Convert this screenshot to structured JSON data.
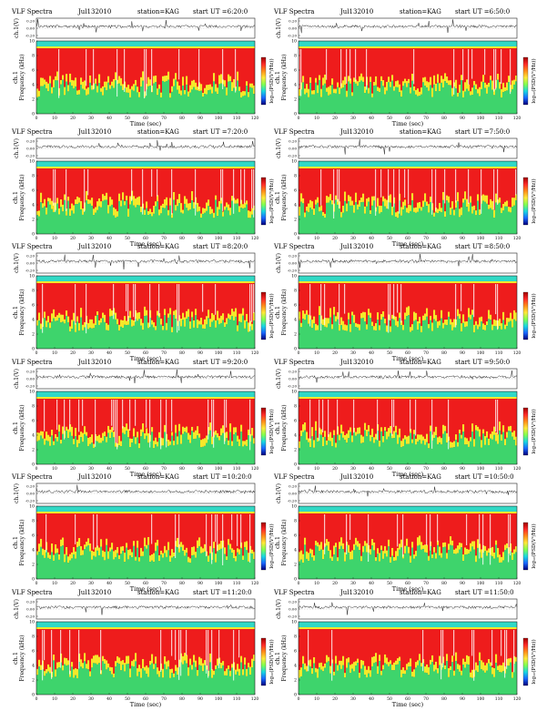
{
  "colors": {
    "background": "#ffffff",
    "trace": "#222222",
    "spectrogram_high": "#ee1c1c",
    "spectrogram_mid": "#f5e82a",
    "spectrogram_low": "#3ed46c",
    "spectrogram_band": "#30d9c6",
    "colorbar_stops": [
      "#a00000",
      "#ff2a2a",
      "#ff8c1a",
      "#ffe83a",
      "#80ff50",
      "#1ad8e0",
      "#1a66ff",
      "#00007a"
    ]
  },
  "chart_data": [
    {
      "type": "heatmap",
      "header": {
        "title": "VLF Spectra",
        "date": "Jul132010",
        "station": "station=KAG",
        "start": "start UT =6:20:0"
      },
      "xlabel": "Time (sec)",
      "ylabel": "Frequency (kHz)",
      "ch_label": "ch.1",
      "trace_ylabel": "ch.1(V)",
      "trace_ticks": [
        "0.20",
        "0.00",
        "-0.20"
      ],
      "colorbar_label": "log₁₀(PSD(V²/Hz))",
      "xticks": [
        0,
        10,
        20,
        30,
        40,
        50,
        60,
        70,
        80,
        90,
        100,
        110,
        120
      ],
      "yticks": [
        0,
        2,
        4,
        6,
        8,
        10
      ],
      "xlim": [
        0,
        120
      ],
      "ylim": [
        0,
        10
      ]
    },
    {
      "type": "heatmap",
      "header": {
        "title": "VLF Spectra",
        "date": "Jul132010",
        "station": "station=KAG",
        "start": "start UT =6:50:0"
      },
      "xlabel": "Time (sec)",
      "ylabel": "Frequency (kHz)",
      "ch_label": "ch.1",
      "trace_ylabel": "ch.1(V)",
      "trace_ticks": [
        "0.20",
        "0.00",
        "-0.20"
      ],
      "colorbar_label": "log₁₀(PSD(V²/Hz))",
      "xticks": [
        0,
        10,
        20,
        30,
        40,
        50,
        60,
        70,
        80,
        90,
        100,
        110,
        120
      ],
      "yticks": [
        0,
        2,
        4,
        6,
        8,
        10
      ],
      "xlim": [
        0,
        120
      ],
      "ylim": [
        0,
        10
      ]
    },
    {
      "type": "heatmap",
      "header": {
        "title": "VLF Spectra",
        "date": "Jul132010",
        "station": "station=KAG",
        "start": "start UT =7:20:0"
      },
      "xlabel": "Time (sec)",
      "ylabel": "Frequency (kHz)",
      "ch_label": "ch.1",
      "trace_ylabel": "ch.1(V)",
      "trace_ticks": [
        "0.20",
        "0.00",
        "-0.20"
      ],
      "colorbar_label": "log₁₀(PSD(V²/Hz))",
      "xticks": [
        0,
        10,
        20,
        30,
        40,
        50,
        60,
        70,
        80,
        90,
        100,
        110,
        120
      ],
      "yticks": [
        0,
        2,
        4,
        6,
        8,
        10
      ],
      "xlim": [
        0,
        120
      ],
      "ylim": [
        0,
        10
      ]
    },
    {
      "type": "heatmap",
      "header": {
        "title": "VLF Spectra",
        "date": "Jul132010",
        "station": "station=KAG",
        "start": "start UT =7:50:0"
      },
      "xlabel": "Time (sec)",
      "ylabel": "Frequency (kHz)",
      "ch_label": "ch.1",
      "trace_ylabel": "ch.1(V)",
      "trace_ticks": [
        "0.20",
        "0.00",
        "-0.20"
      ],
      "colorbar_label": "log₁₀(PSD(V²/Hz))",
      "xticks": [
        0,
        10,
        20,
        30,
        40,
        50,
        60,
        70,
        80,
        90,
        100,
        110,
        120
      ],
      "yticks": [
        0,
        2,
        4,
        6,
        8,
        10
      ],
      "xlim": [
        0,
        120
      ],
      "ylim": [
        0,
        10
      ]
    },
    {
      "type": "heatmap",
      "header": {
        "title": "VLF Spectra",
        "date": "Jul132010",
        "station": "station=KAG",
        "start": "start UT =8:20:0"
      },
      "xlabel": "Time (sec)",
      "ylabel": "Frequency (kHz)",
      "ch_label": "ch.1",
      "trace_ylabel": "ch.1(V)",
      "trace_ticks": [
        "0.20",
        "0.00",
        "-0.20"
      ],
      "colorbar_label": "log₁₀(PSD(V²/Hz))",
      "xticks": [
        0,
        10,
        20,
        30,
        40,
        50,
        60,
        70,
        80,
        90,
        100,
        110,
        120
      ],
      "yticks": [
        0,
        2,
        4,
        6,
        8,
        10
      ],
      "xlim": [
        0,
        120
      ],
      "ylim": [
        0,
        10
      ]
    },
    {
      "type": "heatmap",
      "header": {
        "title": "VLF Spectra",
        "date": "Jul132010",
        "station": "station=KAG",
        "start": "start UT =8:50:0"
      },
      "xlabel": "Time (sec)",
      "ylabel": "Frequency (kHz)",
      "ch_label": "ch.1",
      "trace_ylabel": "ch.1(V)",
      "trace_ticks": [
        "0.20",
        "0.00",
        "-0.20"
      ],
      "colorbar_label": "log₁₀(PSD(V²/Hz))",
      "xticks": [
        0,
        10,
        20,
        30,
        40,
        50,
        60,
        70,
        80,
        90,
        100,
        110,
        120
      ],
      "yticks": [
        0,
        2,
        4,
        6,
        8,
        10
      ],
      "xlim": [
        0,
        120
      ],
      "ylim": [
        0,
        10
      ]
    },
    {
      "type": "heatmap",
      "header": {
        "title": "VLF Spectra",
        "date": "Jul132010",
        "station": "station=KAG",
        "start": "start UT =9:20:0"
      },
      "xlabel": "Time (sec)",
      "ylabel": "Frequency (kHz)",
      "ch_label": "ch.1",
      "trace_ylabel": "ch.1(V)",
      "trace_ticks": [
        "0.20",
        "0.00",
        "-0.20"
      ],
      "colorbar_label": "log₁₀(PSD(V²/Hz))",
      "xticks": [
        0,
        10,
        20,
        30,
        40,
        50,
        60,
        70,
        80,
        90,
        100,
        110,
        120
      ],
      "yticks": [
        0,
        2,
        4,
        6,
        8,
        10
      ],
      "xlim": [
        0,
        120
      ],
      "ylim": [
        0,
        10
      ]
    },
    {
      "type": "heatmap",
      "header": {
        "title": "VLF Spectra",
        "date": "Jul132010",
        "station": "station=KAG",
        "start": "start UT =9:50:0"
      },
      "xlabel": "Time (sec)",
      "ylabel": "Frequency (kHz)",
      "ch_label": "ch.1",
      "trace_ylabel": "ch.1(V)",
      "trace_ticks": [
        "0.20",
        "0.00",
        "-0.20"
      ],
      "colorbar_label": "log₁₀(PSD(V²/Hz))",
      "xticks": [
        0,
        10,
        20,
        30,
        40,
        50,
        60,
        70,
        80,
        90,
        100,
        110,
        120
      ],
      "yticks": [
        0,
        2,
        4,
        6,
        8,
        10
      ],
      "xlim": [
        0,
        120
      ],
      "ylim": [
        0,
        10
      ]
    },
    {
      "type": "heatmap",
      "header": {
        "title": "VLF Spectra",
        "date": "Jul132010",
        "station": "station=KAG",
        "start": "start UT =10:20:0"
      },
      "xlabel": "Time (sec)",
      "ylabel": "Frequency (kHz)",
      "ch_label": "ch.1",
      "trace_ylabel": "ch.1(V)",
      "trace_ticks": [
        "0.20",
        "0.00",
        "-0.20"
      ],
      "colorbar_label": "log₁₀(PSD(V²/Hz))",
      "xticks": [
        0,
        10,
        20,
        30,
        40,
        50,
        60,
        70,
        80,
        90,
        100,
        110,
        120
      ],
      "yticks": [
        0,
        2,
        4,
        6,
        8,
        10
      ],
      "xlim": [
        0,
        120
      ],
      "ylim": [
        0,
        10
      ]
    },
    {
      "type": "heatmap",
      "header": {
        "title": "VLF Spectra",
        "date": "Jul132010",
        "station": "station=KAG",
        "start": "start UT =10:50:0"
      },
      "xlabel": "Time (sec)",
      "ylabel": "Frequency (kHz)",
      "ch_label": "ch.1",
      "trace_ylabel": "ch.1(V)",
      "trace_ticks": [
        "0.20",
        "0.00",
        "-0.20"
      ],
      "colorbar_label": "log₁₀(PSD(V²/Hz))",
      "xticks": [
        0,
        10,
        20,
        30,
        40,
        50,
        60,
        70,
        80,
        90,
        100,
        110,
        120
      ],
      "yticks": [
        0,
        2,
        4,
        6,
        8,
        10
      ],
      "xlim": [
        0,
        120
      ],
      "ylim": [
        0,
        10
      ]
    },
    {
      "type": "heatmap",
      "header": {
        "title": "VLF Spectra",
        "date": "Jul132010",
        "station": "station=KAG",
        "start": "start UT =11:20:0"
      },
      "xlabel": "Time (sec)",
      "ylabel": "Frequency (kHz)",
      "ch_label": "ch.1",
      "trace_ylabel": "ch.1(V)",
      "trace_ticks": [
        "0.20",
        "0.00",
        "-0.20"
      ],
      "colorbar_label": "log₁₀(PSD(V²/Hz))",
      "xticks": [
        0,
        10,
        20,
        30,
        40,
        50,
        60,
        70,
        80,
        90,
        100,
        110,
        120
      ],
      "yticks": [
        0,
        2,
        4,
        6,
        8,
        10
      ],
      "xlim": [
        0,
        120
      ],
      "ylim": [
        0,
        10
      ]
    },
    {
      "type": "heatmap",
      "header": {
        "title": "VLF Spectra",
        "date": "Jul132010",
        "station": "station=KAG",
        "start": "start UT =11:50:0"
      },
      "xlabel": "Time (sec)",
      "ylabel": "Frequency (kHz)",
      "ch_label": "ch.1",
      "trace_ylabel": "ch.1(V)",
      "trace_ticks": [
        "0.20",
        "0.00",
        "-0.20"
      ],
      "colorbar_label": "log₁₀(PSD(V²/Hz))",
      "xticks": [
        0,
        10,
        20,
        30,
        40,
        50,
        60,
        70,
        80,
        90,
        100,
        110,
        120
      ],
      "yticks": [
        0,
        2,
        4,
        6,
        8,
        10
      ],
      "xlim": [
        0,
        120
      ],
      "ylim": [
        0,
        10
      ]
    }
  ]
}
